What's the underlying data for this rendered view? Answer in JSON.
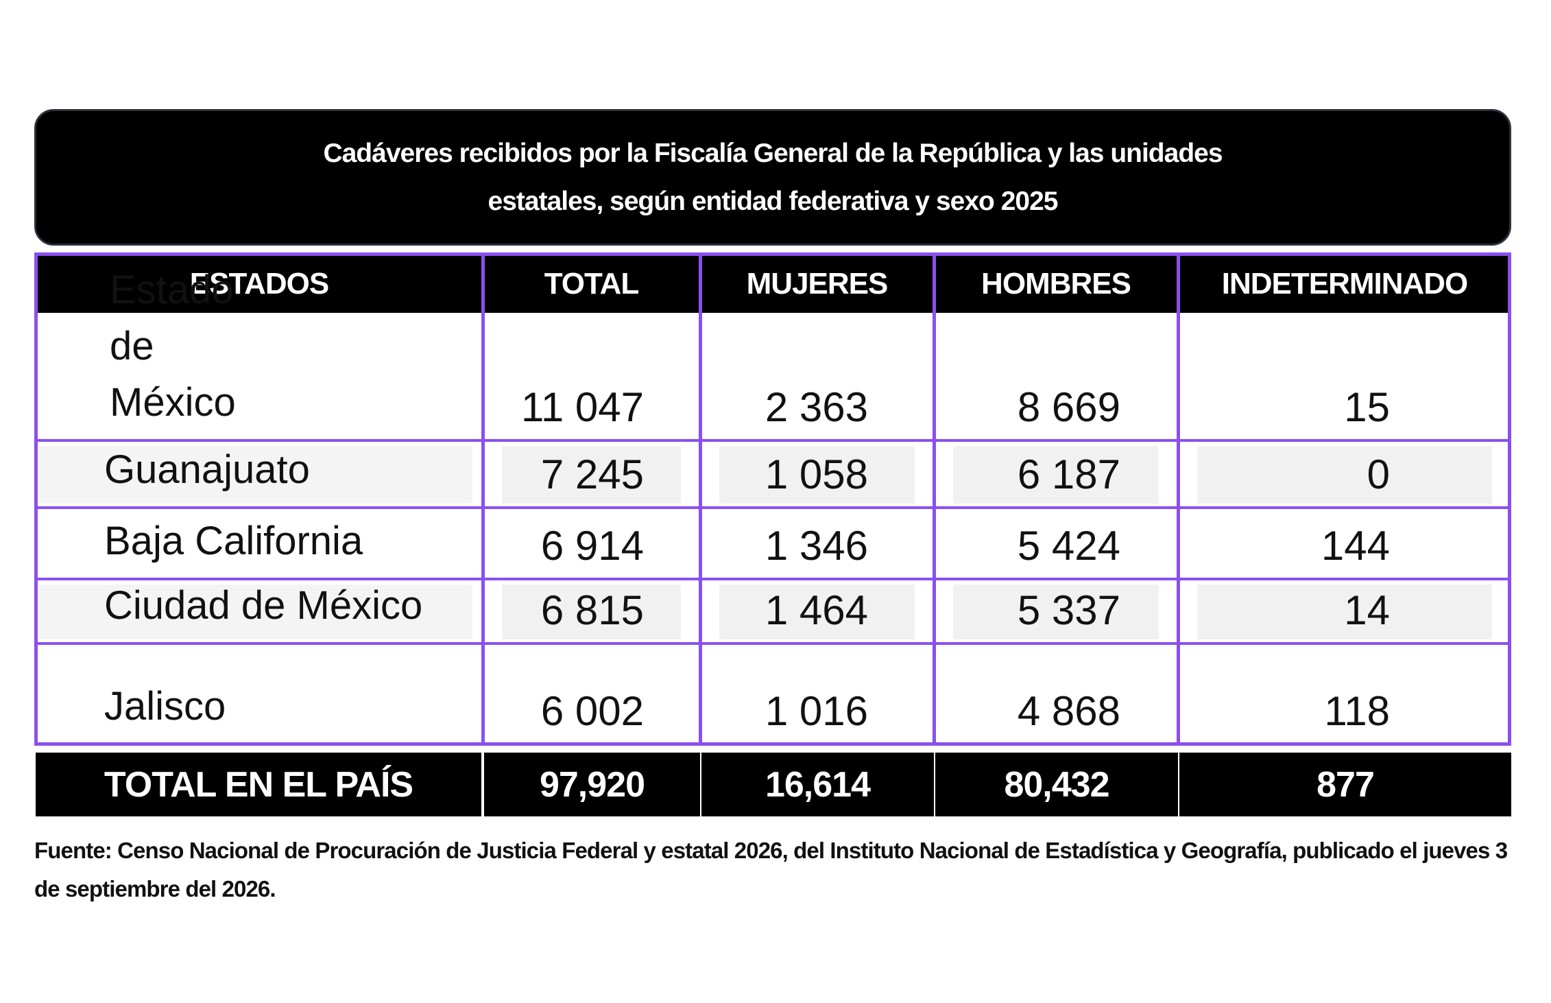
{
  "header": {
    "title_lines": [
      "Cadáveres recibidos por la Fiscalía General de la República y las unidades",
      "estatales, según entidad federativa y sexo 2025"
    ]
  },
  "table": {
    "columns": [
      "ESTADOS",
      "TOTAL",
      "MUJERES",
      "HOMBRES",
      "INDETERMINADO"
    ],
    "rows": [
      [
        "Estado de México",
        "11 047",
        "2 363",
        "8 669",
        "15"
      ],
      [
        "Guanajuato",
        "7 245",
        "1 058",
        "6 187",
        "0"
      ],
      [
        "Baja California",
        "6 914",
        "1 346",
        "5 424",
        "144"
      ],
      [
        "Ciudad de México",
        "6 815",
        "1 464",
        "5 337",
        "14"
      ],
      [
        "Jalisco",
        "6 002",
        "1 016",
        "4 868",
        "118"
      ]
    ],
    "total_row": [
      "TOTAL EN EL PAÍS",
      "97,920",
      "16,614",
      "80,432",
      "877"
    ]
  },
  "footer": {
    "source": "Fuente: Censo Nacional de Procuración de Justicia Federal y estatal 2026, del Instituto Nacional de Estadística y Geografía, publicado el jueves 3 de septiembre del 2026."
  }
}
